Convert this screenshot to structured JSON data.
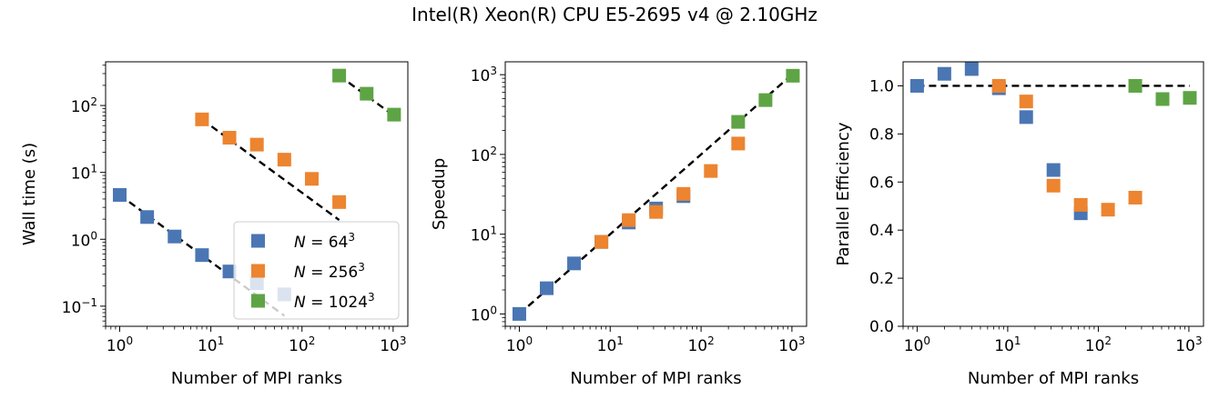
{
  "suptitle": "Intel(R) Xeon(R) CPU E5-2695 v4 @ 2.10GHz",
  "colors": {
    "N64": "#4a76b3",
    "N256": "#ec8430",
    "N1024": "#5ea445",
    "fit_line": "#000000"
  },
  "legend": {
    "placement": "lower-right (panel 1)",
    "entries": [
      {
        "key": "N64",
        "prefix": "N",
        "exp": "3",
        "base": "= 64"
      },
      {
        "key": "N256",
        "prefix": "N",
        "exp": "3",
        "base": "= 256"
      },
      {
        "key": "N1024",
        "prefix": "N",
        "exp": "3",
        "base": "= 1024"
      }
    ]
  },
  "chart_data": [
    {
      "type": "scatter",
      "xlabel": "Number of MPI ranks",
      "ylabel": "Wall time (s)",
      "xscale": "log",
      "yscale": "log",
      "xlim": [
        0.7,
        1450
      ],
      "ylim": [
        0.05,
        450
      ],
      "xticks": [
        1,
        10,
        100,
        1000
      ],
      "yticks": [
        0.1,
        1,
        10,
        100
      ],
      "series": [
        {
          "name": "N=64^3",
          "key": "N64",
          "x": [
            1,
            2,
            4,
            8,
            16,
            32,
            64
          ],
          "y": [
            4.6,
            2.15,
            1.1,
            0.58,
            0.33,
            0.22,
            0.15
          ]
        },
        {
          "name": "N=256^3",
          "key": "N256",
          "x": [
            8,
            16,
            32,
            64,
            128,
            256
          ],
          "y": [
            62,
            33,
            26,
            15.5,
            8.0,
            3.6
          ]
        },
        {
          "name": "N=1024^3",
          "key": "N1024",
          "x": [
            256,
            512,
            1024
          ],
          "y": [
            280,
            150,
            73
          ]
        }
      ],
      "reference_lines": [
        {
          "x": [
            1,
            64
          ],
          "y": [
            4.6,
            0.072
          ]
        },
        {
          "x": [
            8,
            256
          ],
          "y": [
            62,
            1.94
          ]
        },
        {
          "x": [
            256,
            1024
          ],
          "y": [
            280,
            70
          ]
        }
      ]
    },
    {
      "type": "scatter",
      "xlabel": "Number of MPI ranks",
      "ylabel": "Speedup",
      "xscale": "log",
      "yscale": "log",
      "xlim": [
        0.7,
        1450
      ],
      "ylim": [
        0.7,
        1450
      ],
      "xticks": [
        1,
        10,
        100,
        1000
      ],
      "yticks": [
        1,
        10,
        100,
        1000
      ],
      "series": [
        {
          "name": "N=64^3",
          "key": "N64",
          "x": [
            1,
            2,
            4,
            8,
            16,
            32,
            64
          ],
          "y": [
            1,
            2.1,
            4.3,
            8,
            14,
            21,
            30
          ]
        },
        {
          "name": "N=256^3",
          "key": "N256",
          "x": [
            8,
            16,
            32,
            64,
            128,
            256
          ],
          "y": [
            8,
            15,
            19,
            32,
            62,
            137
          ]
        },
        {
          "name": "N=1024^3",
          "key": "N1024",
          "x": [
            256,
            512,
            1024
          ],
          "y": [
            256,
            480,
            970
          ]
        }
      ],
      "reference_lines": [
        {
          "x": [
            1,
            1024
          ],
          "y": [
            1,
            1024
          ]
        }
      ]
    },
    {
      "type": "scatter",
      "xlabel": "Number of MPI ranks",
      "ylabel": "Parallel Efficiency",
      "xscale": "log",
      "yscale": "linear",
      "xlim": [
        0.7,
        1450
      ],
      "ylim": [
        0,
        1.1
      ],
      "xticks": [
        1,
        10,
        100,
        1000
      ],
      "yticks": [
        0.0,
        0.2,
        0.4,
        0.6,
        0.8,
        1.0
      ],
      "series": [
        {
          "name": "N=64^3",
          "key": "N64",
          "x": [
            1,
            2,
            4,
            8,
            16,
            32,
            64
          ],
          "y": [
            1.0,
            1.05,
            1.07,
            0.99,
            0.87,
            0.65,
            0.47
          ]
        },
        {
          "name": "N=256^3",
          "key": "N256",
          "x": [
            8,
            16,
            32,
            64,
            128,
            256
          ],
          "y": [
            1.0,
            0.935,
            0.585,
            0.505,
            0.485,
            0.535
          ]
        },
        {
          "name": "N=1024^3",
          "key": "N1024",
          "x": [
            256,
            512,
            1024
          ],
          "y": [
            1.0,
            0.945,
            0.95
          ]
        }
      ],
      "reference_lines": [
        {
          "x": [
            1,
            1024
          ],
          "y": [
            1.0,
            1.0
          ]
        }
      ]
    }
  ]
}
